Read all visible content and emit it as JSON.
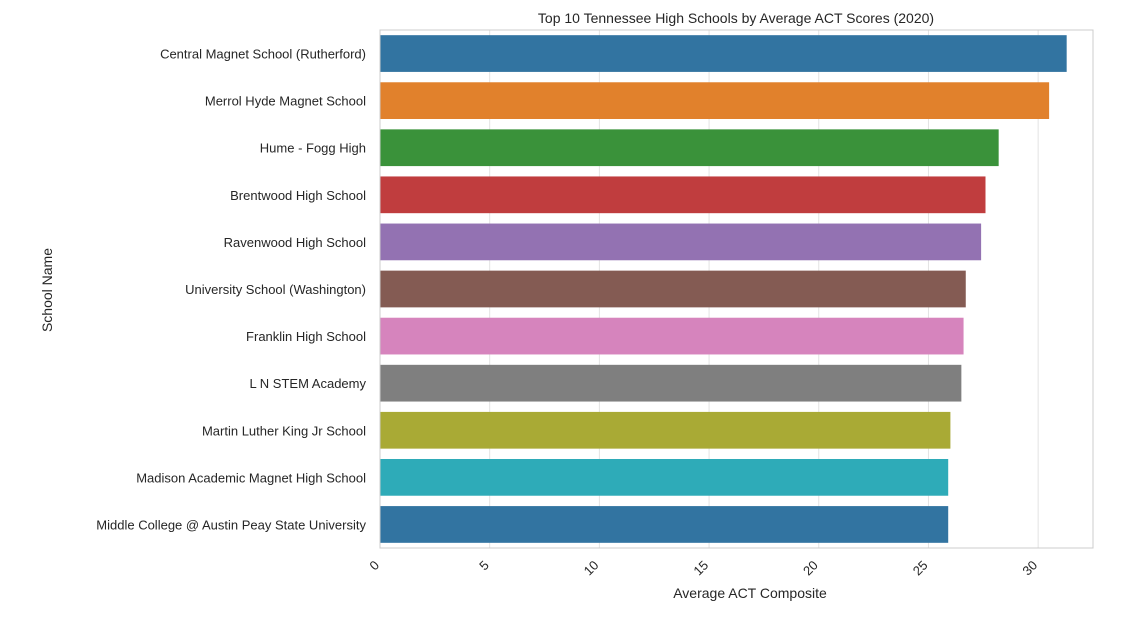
{
  "chart_data": {
    "type": "bar",
    "orientation": "horizontal",
    "title": "Top 10 Tennessee High Schools by Average ACT Scores (2020)",
    "xlabel": "Average ACT Composite",
    "ylabel": "School Name",
    "xlim": [
      0,
      32.5
    ],
    "x_ticks": [
      0,
      5,
      10,
      15,
      20,
      25,
      30
    ],
    "x_tick_labels": [
      "0",
      "5",
      "10",
      "15",
      "20",
      "25",
      "30"
    ],
    "grid": true,
    "categories": [
      "Central Magnet School (Rutherford)",
      "Merrol Hyde Magnet School",
      "Hume - Fogg High",
      "Brentwood High School",
      "Ravenwood High School",
      "University School (Washington)",
      "Franklin High School",
      "L N STEM Academy",
      "Martin Luther King Jr School",
      "Madison Academic Magnet High School",
      "Middle College @ Austin Peay State University"
    ],
    "values": [
      31.3,
      30.5,
      28.2,
      27.6,
      27.4,
      26.7,
      26.6,
      26.5,
      26.0,
      25.9,
      25.9
    ],
    "colors": [
      "#3274a1",
      "#e1812c",
      "#3a923a",
      "#c03d3e",
      "#9372b2",
      "#845b53",
      "#d684bd",
      "#7f7f7f",
      "#a9aa35",
      "#2eabb8",
      "#3274a1"
    ]
  }
}
